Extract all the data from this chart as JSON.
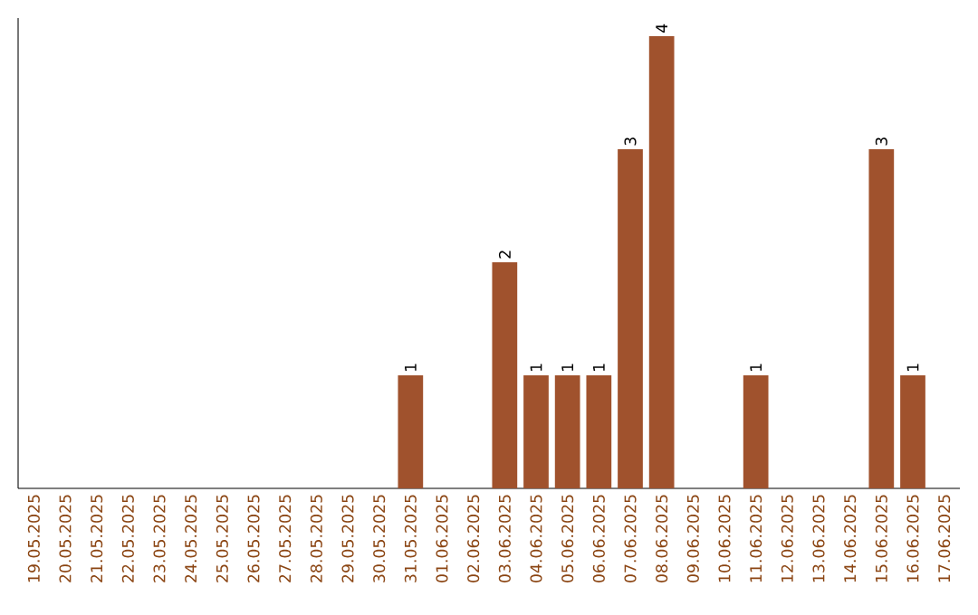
{
  "chart_data": {
    "type": "bar",
    "categories": [
      "19.05.2025",
      "20.05.2025",
      "21.05.2025",
      "22.05.2025",
      "23.05.2025",
      "24.05.2025",
      "25.05.2025",
      "26.05.2025",
      "27.05.2025",
      "28.05.2025",
      "29.05.2025",
      "30.05.2025",
      "31.05.2025",
      "01.06.2025",
      "02.06.2025",
      "03.06.2025",
      "04.06.2025",
      "05.06.2025",
      "06.06.2025",
      "07.06.2025",
      "08.06.2025",
      "09.06.2025",
      "10.06.2025",
      "11.06.2025",
      "12.06.2025",
      "13.06.2025",
      "14.06.2025",
      "15.06.2025",
      "16.06.2025",
      "17.06.2025"
    ],
    "values": [
      null,
      null,
      null,
      null,
      null,
      null,
      null,
      null,
      null,
      null,
      null,
      null,
      1,
      null,
      null,
      2,
      1,
      1,
      1,
      3,
      4,
      null,
      null,
      1,
      null,
      null,
      null,
      3,
      1,
      null
    ],
    "data_labels": true,
    "color": "#a0522d",
    "grid": false,
    "tick_labels": "x"
  }
}
